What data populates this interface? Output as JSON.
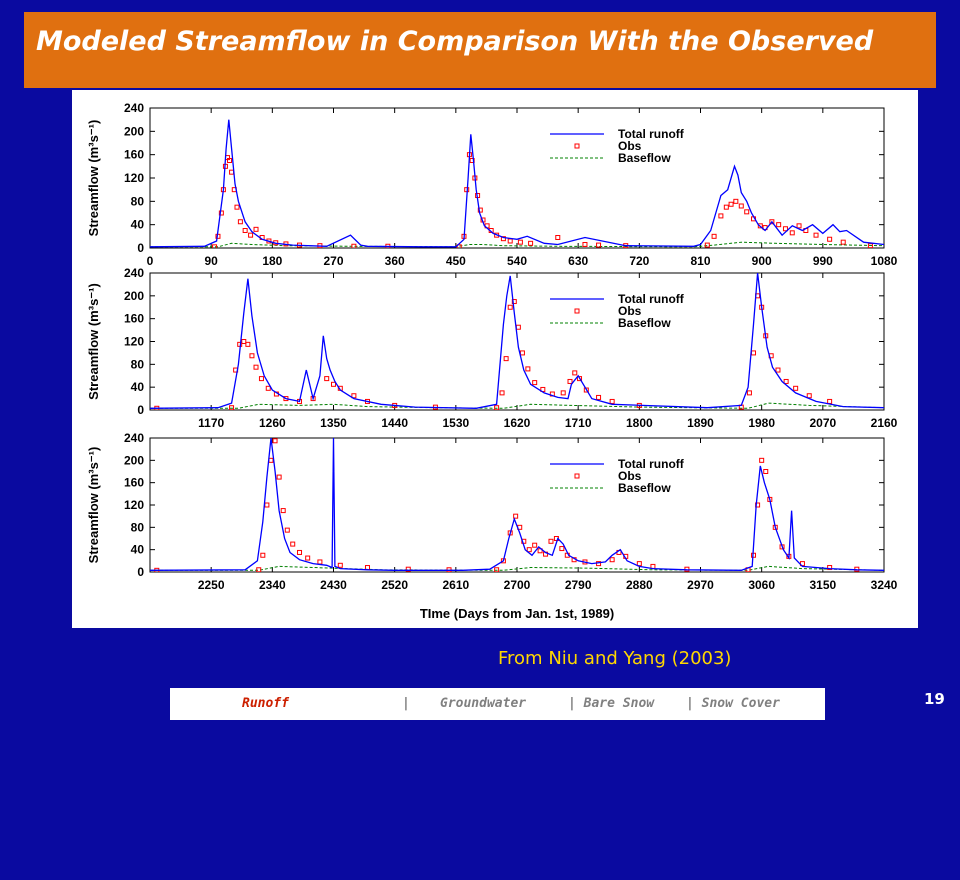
{
  "slide": {
    "title": "Modeled Streamflow in Comparison With the Observed",
    "credit": "From Niu and Yang (2003)",
    "page_number": "19",
    "colors": {
      "background": "#0a0aa0",
      "title_bar": "#e07010",
      "credit": "#ffd700",
      "active_nav": "#cc2000"
    }
  },
  "nav": {
    "items": [
      {
        "label": "Runoff",
        "active": true
      },
      {
        "label": "|",
        "active": false
      },
      {
        "label": "Groundwater",
        "active": false
      },
      {
        "label": "| Bare Snow",
        "active": false
      },
      {
        "label": "| Snow Cover",
        "active": false
      }
    ]
  },
  "chart_data": {
    "type": "line",
    "xlabel": "TIme (Days from Jan. 1st, 1989)",
    "ylabel": "Streamflow (m³s⁻¹)",
    "ylim": [
      0,
      240
    ],
    "yticks": [
      0,
      40,
      80,
      120,
      160,
      200,
      240
    ],
    "grid": false,
    "legend_position": "top-right",
    "legend": [
      {
        "name": "Total runoff",
        "color": "#0000ff",
        "style": "solid"
      },
      {
        "name": "Obs",
        "color": "#ff0000",
        "style": "open-square-markers"
      },
      {
        "name": "Baseflow",
        "color": "#008000",
        "style": "dashed"
      }
    ],
    "panels": [
      {
        "xlim": [
          0,
          1080
        ],
        "xticks": [
          0,
          90,
          180,
          270,
          360,
          450,
          540,
          630,
          720,
          810,
          900,
          990,
          1080
        ],
        "total_runoff": {
          "x": [
            0,
            80,
            98,
            108,
            112,
            116,
            120,
            125,
            130,
            140,
            150,
            165,
            185,
            210,
            260,
            295,
            310,
            320,
            400,
            450,
            462,
            468,
            472,
            476,
            480,
            485,
            492,
            505,
            520,
            540,
            555,
            580,
            600,
            640,
            700,
            800,
            810,
            825,
            840,
            850,
            860,
            865,
            870,
            878,
            885,
            895,
            905,
            915,
            930,
            945,
            960,
            975,
            990,
            1005,
            1015,
            1025,
            1050,
            1080
          ],
          "y": [
            2,
            3,
            12,
            100,
            170,
            220,
            170,
            110,
            80,
            45,
            28,
            15,
            8,
            5,
            3,
            22,
            5,
            3,
            2,
            2,
            15,
            120,
            195,
            150,
            100,
            60,
            38,
            25,
            18,
            15,
            20,
            8,
            6,
            18,
            4,
            3,
            6,
            30,
            90,
            100,
            140,
            125,
            95,
            80,
            60,
            40,
            30,
            45,
            22,
            38,
            30,
            40,
            25,
            40,
            28,
            30,
            10,
            6
          ]
        },
        "obs": {
          "x": [
            95,
            100,
            105,
            108,
            111,
            114,
            117,
            120,
            124,
            128,
            133,
            140,
            148,
            156,
            165,
            175,
            185,
            200,
            220,
            250,
            300,
            350,
            455,
            462,
            466,
            470,
            474,
            478,
            482,
            486,
            490,
            496,
            502,
            510,
            520,
            530,
            545,
            560,
            600,
            640,
            660,
            700,
            820,
            830,
            840,
            848,
            855,
            862,
            870,
            878,
            888,
            898,
            905,
            915,
            925,
            935,
            945,
            955,
            965,
            980,
            1000,
            1020,
            1060
          ],
          "y": [
            2,
            20,
            60,
            100,
            140,
            155,
            150,
            130,
            100,
            70,
            45,
            30,
            22,
            32,
            18,
            12,
            9,
            7,
            5,
            4,
            3,
            3,
            2,
            20,
            100,
            160,
            150,
            120,
            90,
            65,
            48,
            38,
            30,
            22,
            16,
            12,
            10,
            8,
            18,
            6,
            5,
            4,
            5,
            20,
            55,
            70,
            75,
            80,
            72,
            62,
            50,
            38,
            35,
            45,
            40,
            33,
            26,
            38,
            30,
            22,
            15,
            10,
            4
          ]
        },
        "baseflow": {
          "x": [
            0,
            100,
            120,
            150,
            200,
            300,
            450,
            470,
            490,
            520,
            600,
            800,
            830,
            870,
            920,
            990,
            1080
          ],
          "y": [
            2,
            2,
            8,
            6,
            4,
            3,
            2,
            6,
            6,
            4,
            3,
            2,
            5,
            10,
            8,
            6,
            4
          ]
        }
      },
      {
        "xlim": [
          1080,
          2160
        ],
        "xticks": [
          1170,
          1260,
          1350,
          1440,
          1530,
          1620,
          1710,
          1800,
          1890,
          1980,
          2070,
          2160
        ],
        "total_runoff": {
          "x": [
            1080,
            1180,
            1200,
            1210,
            1218,
            1224,
            1230,
            1238,
            1248,
            1260,
            1280,
            1300,
            1310,
            1320,
            1330,
            1335,
            1340,
            1345,
            1352,
            1360,
            1380,
            1420,
            1470,
            1560,
            1590,
            1600,
            1605,
            1610,
            1616,
            1622,
            1630,
            1640,
            1660,
            1680,
            1695,
            1700,
            1710,
            1730,
            1760,
            1900,
            1950,
            1960,
            1968,
            1974,
            1980,
            1988,
            1996,
            2010,
            2030,
            2060,
            2100,
            2160
          ],
          "y": [
            3,
            4,
            12,
            80,
            170,
            230,
            165,
            100,
            60,
            35,
            20,
            15,
            70,
            20,
            60,
            130,
            90,
            70,
            50,
            35,
            20,
            10,
            5,
            3,
            10,
            150,
            200,
            235,
            170,
            110,
            70,
            45,
            30,
            22,
            20,
            45,
            60,
            20,
            10,
            4,
            8,
            40,
            150,
            240,
            180,
            110,
            75,
            50,
            30,
            15,
            6,
            4
          ]
        },
        "obs": {
          "x": [
            1090,
            1200,
            1206,
            1212,
            1218,
            1224,
            1230,
            1236,
            1244,
            1254,
            1266,
            1280,
            1300,
            1320,
            1340,
            1350,
            1360,
            1380,
            1400,
            1440,
            1500,
            1590,
            1598,
            1604,
            1610,
            1616,
            1622,
            1628,
            1636,
            1646,
            1658,
            1672,
            1688,
            1698,
            1705,
            1712,
            1722,
            1740,
            1760,
            1800,
            1950,
            1962,
            1968,
            1974,
            1980,
            1986,
            1994,
            2004,
            2016,
            2030,
            2050,
            2080
          ],
          "y": [
            3,
            4,
            70,
            115,
            120,
            115,
            95,
            75,
            55,
            38,
            28,
            20,
            15,
            20,
            55,
            45,
            38,
            25,
            15,
            8,
            5,
            4,
            30,
            90,
            180,
            190,
            145,
            100,
            72,
            48,
            36,
            28,
            30,
            50,
            65,
            55,
            35,
            22,
            15,
            8,
            5,
            30,
            100,
            200,
            180,
            130,
            95,
            70,
            50,
            38,
            25,
            15
          ]
        },
        "baseflow": {
          "x": [
            1080,
            1210,
            1240,
            1300,
            1350,
            1400,
            1500,
            1600,
            1640,
            1700,
            1800,
            1960,
            1990,
            2050,
            2160
          ],
          "y": [
            3,
            3,
            10,
            8,
            10,
            6,
            4,
            3,
            10,
            8,
            5,
            3,
            12,
            8,
            4
          ]
        }
      },
      {
        "xlim": [
          2160,
          3240
        ],
        "xticks": [
          2250,
          2340,
          2430,
          2520,
          2610,
          2700,
          2790,
          2880,
          2970,
          3060,
          3150,
          3240
        ],
        "total_runoff": {
          "x": [
            2160,
            2300,
            2318,
            2326,
            2332,
            2338,
            2344,
            2350,
            2358,
            2366,
            2380,
            2400,
            2420,
            2428,
            2430,
            2432,
            2440,
            2480,
            2520,
            2560,
            2620,
            2660,
            2680,
            2688,
            2696,
            2704,
            2712,
            2722,
            2732,
            2742,
            2752,
            2760,
            2768,
            2776,
            2790,
            2810,
            2830,
            2840,
            2852,
            2862,
            2880,
            2900,
            2950,
            3030,
            3046,
            3052,
            3058,
            3064,
            3072,
            3080,
            3092,
            3100,
            3104,
            3108,
            3120,
            3160,
            3200,
            3240
          ],
          "y": [
            3,
            4,
            20,
            90,
            170,
            240,
            180,
            110,
            60,
            35,
            22,
            15,
            12,
            8,
            240,
            10,
            6,
            4,
            3,
            3,
            3,
            5,
            20,
            60,
            95,
            70,
            40,
            30,
            45,
            35,
            30,
            60,
            50,
            30,
            20,
            15,
            18,
            30,
            40,
            20,
            10,
            6,
            4,
            3,
            10,
            120,
            190,
            160,
            130,
            80,
            40,
            25,
            110,
            25,
            10,
            6,
            4,
            3
          ]
        },
        "obs": {
          "x": [
            2170,
            2320,
            2326,
            2332,
            2338,
            2344,
            2350,
            2356,
            2362,
            2370,
            2380,
            2392,
            2410,
            2440,
            2480,
            2540,
            2600,
            2670,
            2680,
            2690,
            2698,
            2704,
            2710,
            2718,
            2726,
            2734,
            2742,
            2750,
            2758,
            2766,
            2774,
            2784,
            2800,
            2820,
            2840,
            2850,
            2860,
            2880,
            2900,
            2950,
            3040,
            3048,
            3054,
            3060,
            3066,
            3072,
            3080,
            3090,
            3100,
            3120,
            3160,
            3200
          ],
          "y": [
            3,
            4,
            30,
            120,
            200,
            235,
            170,
            110,
            75,
            50,
            35,
            25,
            18,
            12,
            8,
            5,
            4,
            4,
            20,
            70,
            100,
            80,
            55,
            40,
            48,
            38,
            32,
            55,
            60,
            42,
            30,
            22,
            18,
            15,
            22,
            35,
            28,
            15,
            10,
            5,
            4,
            30,
            120,
            200,
            180,
            130,
            80,
            45,
            28,
            15,
            8,
            5
          ]
        },
        "baseflow": {
          "x": [
            2160,
            2320,
            2350,
            2400,
            2500,
            2680,
            2720,
            2800,
            2900,
            3040,
            3070,
            3120,
            3240
          ],
          "y": [
            3,
            3,
            10,
            8,
            4,
            3,
            8,
            7,
            4,
            3,
            10,
            6,
            3
          ]
        }
      }
    ]
  }
}
